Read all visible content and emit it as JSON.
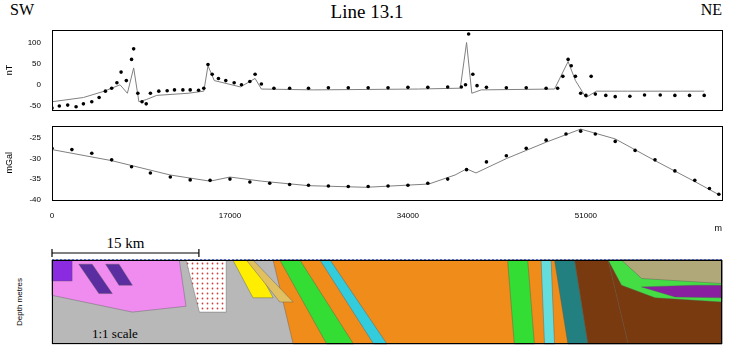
{
  "header": {
    "title": "Line 13.1",
    "left": "SW",
    "right": "NE"
  },
  "chart_data": [
    {
      "type": "line",
      "y_label": "nT",
      "xlim": [
        0,
        64000
      ],
      "ylim": [
        -60,
        130
      ],
      "yticks": [
        -50,
        0,
        50,
        100
      ],
      "grid": false,
      "tick_labels": "y",
      "series": [
        {
          "type": "scatter",
          "marker": "circle",
          "color": "#000000",
          "x": [
            0,
            700,
            1500,
            2300,
            3000,
            3800,
            4500,
            5100,
            5700,
            6200,
            6600,
            7100,
            7600,
            7800,
            8200,
            8600,
            9000,
            9400,
            10200,
            11000,
            11700,
            12500,
            13200,
            14000,
            14500,
            14900,
            15300,
            15900,
            16600,
            17400,
            18100,
            18900,
            19400,
            20000,
            21200,
            22700,
            24500,
            26400,
            28300,
            30200,
            32100,
            34000,
            35900,
            37800,
            39100,
            39500,
            39800,
            40200,
            40600,
            41500,
            43400,
            45300,
            47200,
            48300,
            48800,
            49300,
            49600,
            50000,
            50500,
            51000,
            51500,
            51900,
            52900,
            53800,
            55200,
            56600,
            58100,
            59500,
            60900,
            62300
          ],
          "values": [
            -55,
            -50,
            -48,
            -52,
            -45,
            -40,
            -30,
            -15,
            -8,
            5,
            30,
            10,
            60,
            85,
            -20,
            -40,
            -45,
            -20,
            -15,
            -14,
            -12,
            -12,
            -12,
            -13,
            -8,
            48,
            25,
            15,
            10,
            5,
            0,
            8,
            25,
            2,
            -8,
            -8,
            -8,
            -7,
            -7,
            -7,
            -7,
            -6,
            -6,
            -5,
            -5,
            0,
            120,
            25,
            -2,
            -6,
            -7,
            -7,
            -8,
            -8,
            20,
            60,
            45,
            20,
            -20,
            -25,
            20,
            -22,
            -25,
            -28,
            -27,
            -24,
            -24,
            -25,
            -25,
            -25
          ]
        },
        {
          "type": "line",
          "line_style": "solid",
          "color": "#808080",
          "x": [
            0,
            3000,
            5000,
            6500,
            7200,
            7800,
            8300,
            9000,
            10000,
            13000,
            14500,
            14900,
            15500,
            18000,
            19400,
            20000,
            25000,
            35000,
            39000,
            39600,
            40100,
            41000,
            48000,
            49300,
            50000,
            51000,
            52000,
            55000,
            62300
          ],
          "values": [
            -40,
            -30,
            -15,
            0,
            -20,
            40,
            -40,
            -35,
            -25,
            -20,
            -15,
            45,
            10,
            -5,
            15,
            -10,
            -12,
            -10,
            -8,
            100,
            -20,
            -12,
            -10,
            55,
            10,
            -30,
            -15,
            -15,
            -15
          ]
        }
      ]
    },
    {
      "type": "line",
      "y_label": "mGal",
      "x_label": "m",
      "xlim": [
        0,
        64000
      ],
      "xticks": [
        0,
        17000,
        34000,
        51000
      ],
      "ylim": [
        -40,
        -22
      ],
      "yticks": [
        -40,
        -35,
        -30,
        -25
      ],
      "grid": false,
      "series": [
        {
          "type": "scatter",
          "marker": "circle",
          "color": "#000000",
          "x": [
            0,
            1900,
            3800,
            5700,
            7600,
            9400,
            11300,
            13200,
            15100,
            17000,
            18900,
            20800,
            22700,
            24500,
            26400,
            28300,
            30200,
            32100,
            34000,
            35900,
            37800,
            39600,
            41500,
            43400,
            45300,
            47200,
            49100,
            50500,
            51900,
            53800,
            55700,
            57600,
            59500,
            61400,
            62800,
            63700
          ],
          "values": [
            -27.5,
            -27.8,
            -28.7,
            -30.3,
            -32,
            -33.5,
            -34.5,
            -35.2,
            -35.3,
            -35,
            -35.7,
            -36,
            -36.3,
            -36.5,
            -36.7,
            -36.8,
            -36.8,
            -36.7,
            -36.5,
            -36,
            -35,
            -32.7,
            -30.8,
            -29.3,
            -27.5,
            -25.5,
            -24,
            -23.3,
            -24,
            -25.8,
            -28,
            -30.3,
            -33,
            -35.3,
            -37.3,
            -38.7
          ]
        },
        {
          "type": "line",
          "line_style": "solid",
          "color": "#808080",
          "x": [
            0,
            5700,
            11300,
            15100,
            17000,
            20000,
            24500,
            30000,
            36000,
            38500,
            39600,
            40500,
            43400,
            47200,
            50500,
            53800,
            57600,
            61400,
            63700
          ],
          "values": [
            -27.8,
            -30.5,
            -34,
            -35.5,
            -34.5,
            -35.5,
            -36.6,
            -37,
            -36.2,
            -34,
            -32.5,
            -33.5,
            -30,
            -26,
            -22.8,
            -25.2,
            -30.5,
            -35.6,
            -38.8
          ]
        }
      ]
    }
  ],
  "section": {
    "axis_label": "Depth metres",
    "scale_bar": "15 km",
    "scale_note": "1:1 scale"
  }
}
